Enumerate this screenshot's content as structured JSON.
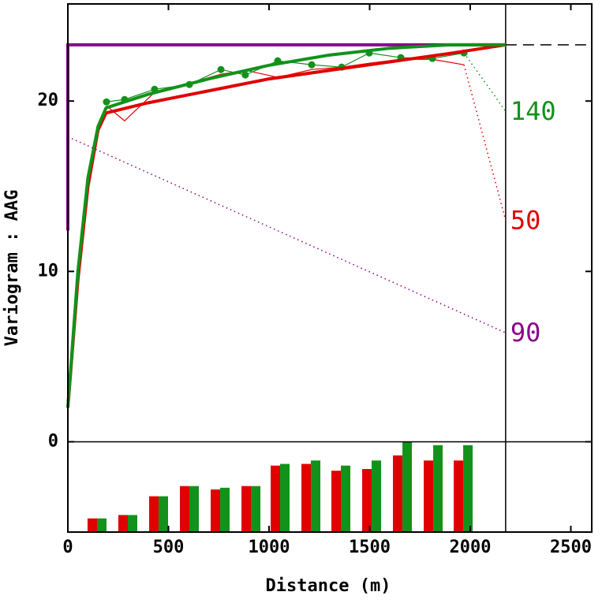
{
  "chart_data": {
    "type": "line",
    "x_label": "Distance (m)",
    "y_label": "Variogram : AAG",
    "xlim": [
      0,
      2604
    ],
    "ylim": [
      -5.3,
      25.7
    ],
    "xticks": [
      0,
      500,
      1000,
      1500,
      2000,
      2500
    ],
    "yticks": [
      0,
      10,
      20
    ],
    "zero_line": 0,
    "max_distance": 2176,
    "sill": 23.3,
    "histogram": {
      "x": [
        145,
        298,
        451,
        604,
        757,
        910,
        1055,
        1208,
        1357,
        1510,
        1663,
        1816,
        1965
      ],
      "series": [
        {
          "color": "#e00000",
          "values": [
            -4.5,
            -4.3,
            -3.2,
            -2.6,
            -2.8,
            -2.6,
            -1.4,
            -1.3,
            -1.7,
            -1.6,
            -0.8,
            -1.1,
            -1.1
          ]
        },
        {
          "color": "#12921a",
          "values": [
            -4.5,
            -4.3,
            -3.2,
            -2.6,
            -2.7,
            -2.6,
            -1.3,
            -1.1,
            -1.4,
            -1.1,
            0,
            -0.2,
            -0.2
          ]
        }
      ]
    },
    "series": [
      {
        "color": "#e00000",
        "style": "thin",
        "x": [
          192,
          282,
          431,
          604,
          761,
          882,
          1043,
          1212,
          1361,
          1498,
          1655,
          1812,
          1969
        ],
        "values": [
          19.72,
          18.84,
          20.51,
          21.06,
          21.57,
          21.81,
          21.39,
          21.85,
          21.99,
          22.22,
          22.45,
          22.45,
          22.13
        ]
      },
      {
        "color": "#12921a",
        "style": "thin",
        "markers": true,
        "x": [
          192,
          282,
          431,
          604,
          761,
          882,
          1043,
          1212,
          1361,
          1498,
          1655,
          1812,
          1969
        ],
        "values": [
          19.95,
          20.09,
          20.69,
          20.97,
          21.85,
          21.53,
          22.36,
          22.13,
          21.99,
          22.82,
          22.55,
          22.5,
          22.82
        ]
      },
      {
        "color": "#8b008b",
        "style": "thick",
        "x": [
          0,
          0,
          2176
        ],
        "values": [
          12.4,
          23.3,
          23.3
        ]
      },
      {
        "color": "#e00000",
        "style": "thick",
        "x": [
          0,
          50,
          100,
          150,
          190,
          400,
          700,
          1000,
          1300,
          1600,
          1900,
          2176
        ],
        "values": [
          2,
          9.5,
          15,
          18.3,
          19.3,
          19.9,
          20.6,
          21.3,
          21.8,
          22.3,
          22.8,
          23.3
        ]
      },
      {
        "color": "#12921a",
        "style": "thick",
        "x": [
          0,
          50,
          100,
          150,
          190,
          400,
          700,
          1000,
          1300,
          1600,
          1900,
          2176
        ],
        "values": [
          2,
          10,
          15.5,
          18.5,
          19.6,
          20.4,
          21.3,
          22.1,
          22.7,
          23.1,
          23.3,
          23.3
        ]
      },
      {
        "color": "#12921a",
        "style": "dotted",
        "label": "140",
        "x": [
          1969,
          2176
        ],
        "values": [
          22.82,
          19.4
        ]
      },
      {
        "color": "#e00000",
        "style": "dotted",
        "label": "50",
        "x": [
          1969,
          2176
        ],
        "values": [
          22.13,
          13.0
        ]
      },
      {
        "color": "#8b008b",
        "style": "dotted",
        "label": "90",
        "x": [
          0,
          2176
        ],
        "values": [
          17.9,
          6.4
        ]
      }
    ]
  }
}
